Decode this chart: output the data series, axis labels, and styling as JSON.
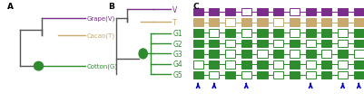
{
  "panel_A_label": "A",
  "panel_B_label": "B",
  "panel_C_label": "C",
  "grape_color": "#7B2D8B",
  "cacao_color": "#C8A96E",
  "cotton_color": "#2E8B2E",
  "tree_line_color": "#555555",
  "grape_label": "Grape(V)",
  "cacao_label": "Cacao(T)",
  "cotton_label": "Cotton(G)",
  "row_labels": [
    "V",
    "T",
    "G1",
    "G2",
    "G3",
    "G4",
    "G5"
  ],
  "row_colors": [
    "#7B2D8B",
    "#C8A96E",
    "#2E8B2E",
    "#2E8B2E",
    "#2E8B2E",
    "#2E8B2E",
    "#2E8B2E"
  ],
  "gene_data": [
    [
      1,
      1,
      1,
      0,
      1,
      1,
      0,
      1,
      1,
      1,
      1
    ],
    [
      1,
      1,
      0,
      1,
      1,
      0,
      1,
      1,
      1,
      1,
      1
    ],
    [
      1,
      0,
      1,
      0,
      1,
      1,
      0,
      1,
      1,
      0,
      1
    ],
    [
      1,
      1,
      0,
      1,
      1,
      0,
      1,
      0,
      1,
      0,
      1
    ],
    [
      1,
      1,
      0,
      1,
      0,
      1,
      0,
      1,
      0,
      1,
      0
    ],
    [
      0,
      1,
      0,
      1,
      1,
      0,
      1,
      0,
      1,
      0,
      1
    ],
    [
      1,
      0,
      1,
      0,
      1,
      0,
      1,
      0,
      1,
      0,
      1
    ]
  ],
  "arrows_x_idx": [
    0,
    1,
    3,
    7,
    9,
    10
  ],
  "background_color": "#FFFFFF",
  "blue_arrow_color": "#0000CC"
}
